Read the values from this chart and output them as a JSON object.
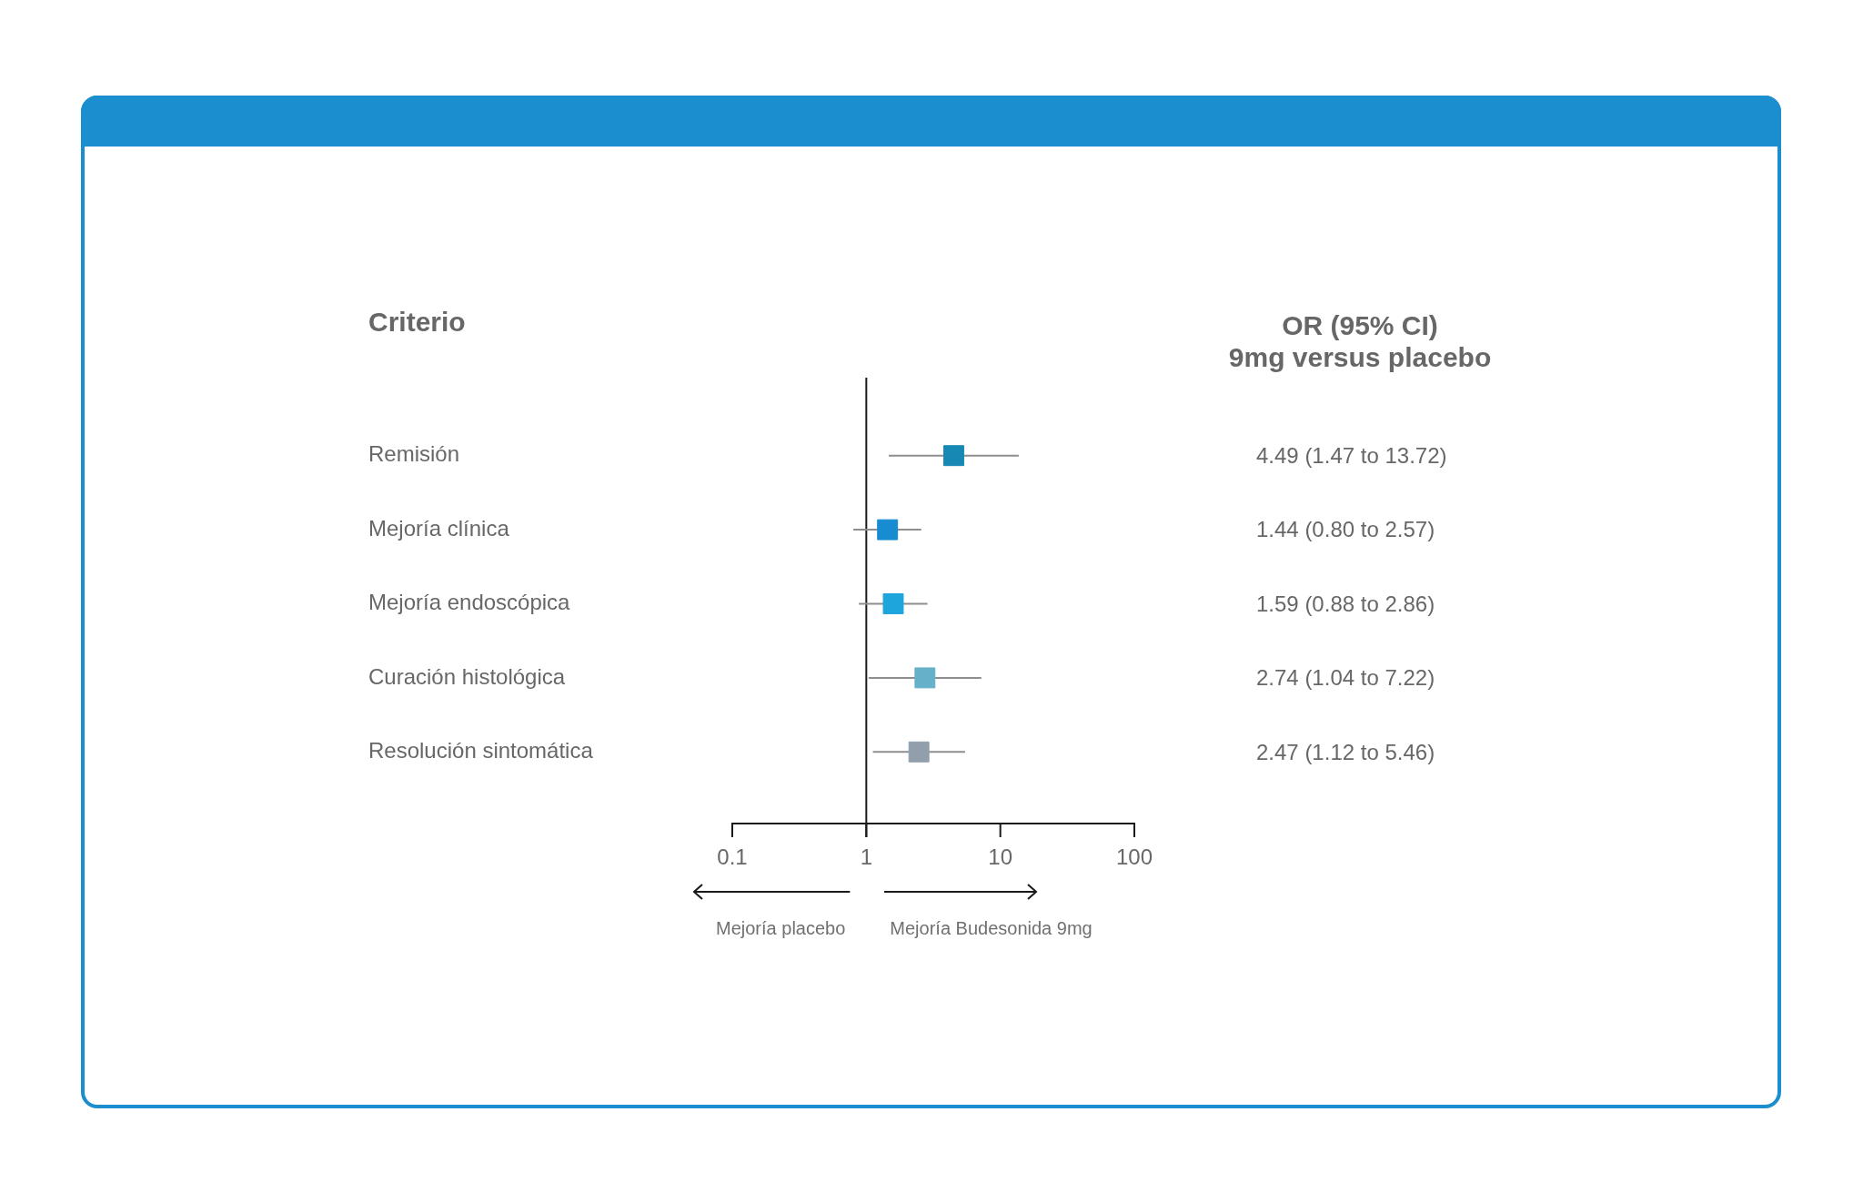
{
  "chart_data": [
    {
      "type": "scatter",
      "orientation": "horizontal",
      "ylabel": "Criterio",
      "categories": [
        "Remisión",
        "Mejoría clínica",
        "Mejoría endoscópica",
        "Curación histológica",
        "Resolución sintomática"
      ],
      "values": [
        4.49,
        1.44,
        1.59,
        2.74,
        2.47
      ],
      "errors": [
        [
          1.47,
          13.72
        ],
        [
          0.8,
          2.57
        ],
        [
          0.88,
          2.86
        ],
        [
          1.04,
          7.22
        ],
        [
          1.12,
          5.46
        ]
      ],
      "colors": [
        "#1787b4",
        "#178cd0",
        "#1ea5dc",
        "#66b1c9",
        "#919fac"
      ],
      "log": "x",
      "xlim": [
        0.1,
        100
      ],
      "xticks": [
        0.1,
        1,
        10,
        100
      ],
      "marker": "square",
      "ref_lines": [
        {
          "axis": "x",
          "value": 1,
          "color": "#1a1a1a"
        }
      ],
      "annotations": [
        "Mejoría placebo",
        "Mejoría Budesonida 9mg"
      ]
    },
    {
      "type": "other",
      "title": "OR (95% CI)",
      "subtitle": "9mg versus placebo",
      "annotations": [
        "4.49 (1.47 to 13.72)",
        "1.44 (0.80 to 2.57)",
        "1.59 (0.88 to 2.86)",
        "2.74 (1.04 to 7.22)",
        "2.47 (1.12 to 5.46)"
      ]
    }
  ]
}
